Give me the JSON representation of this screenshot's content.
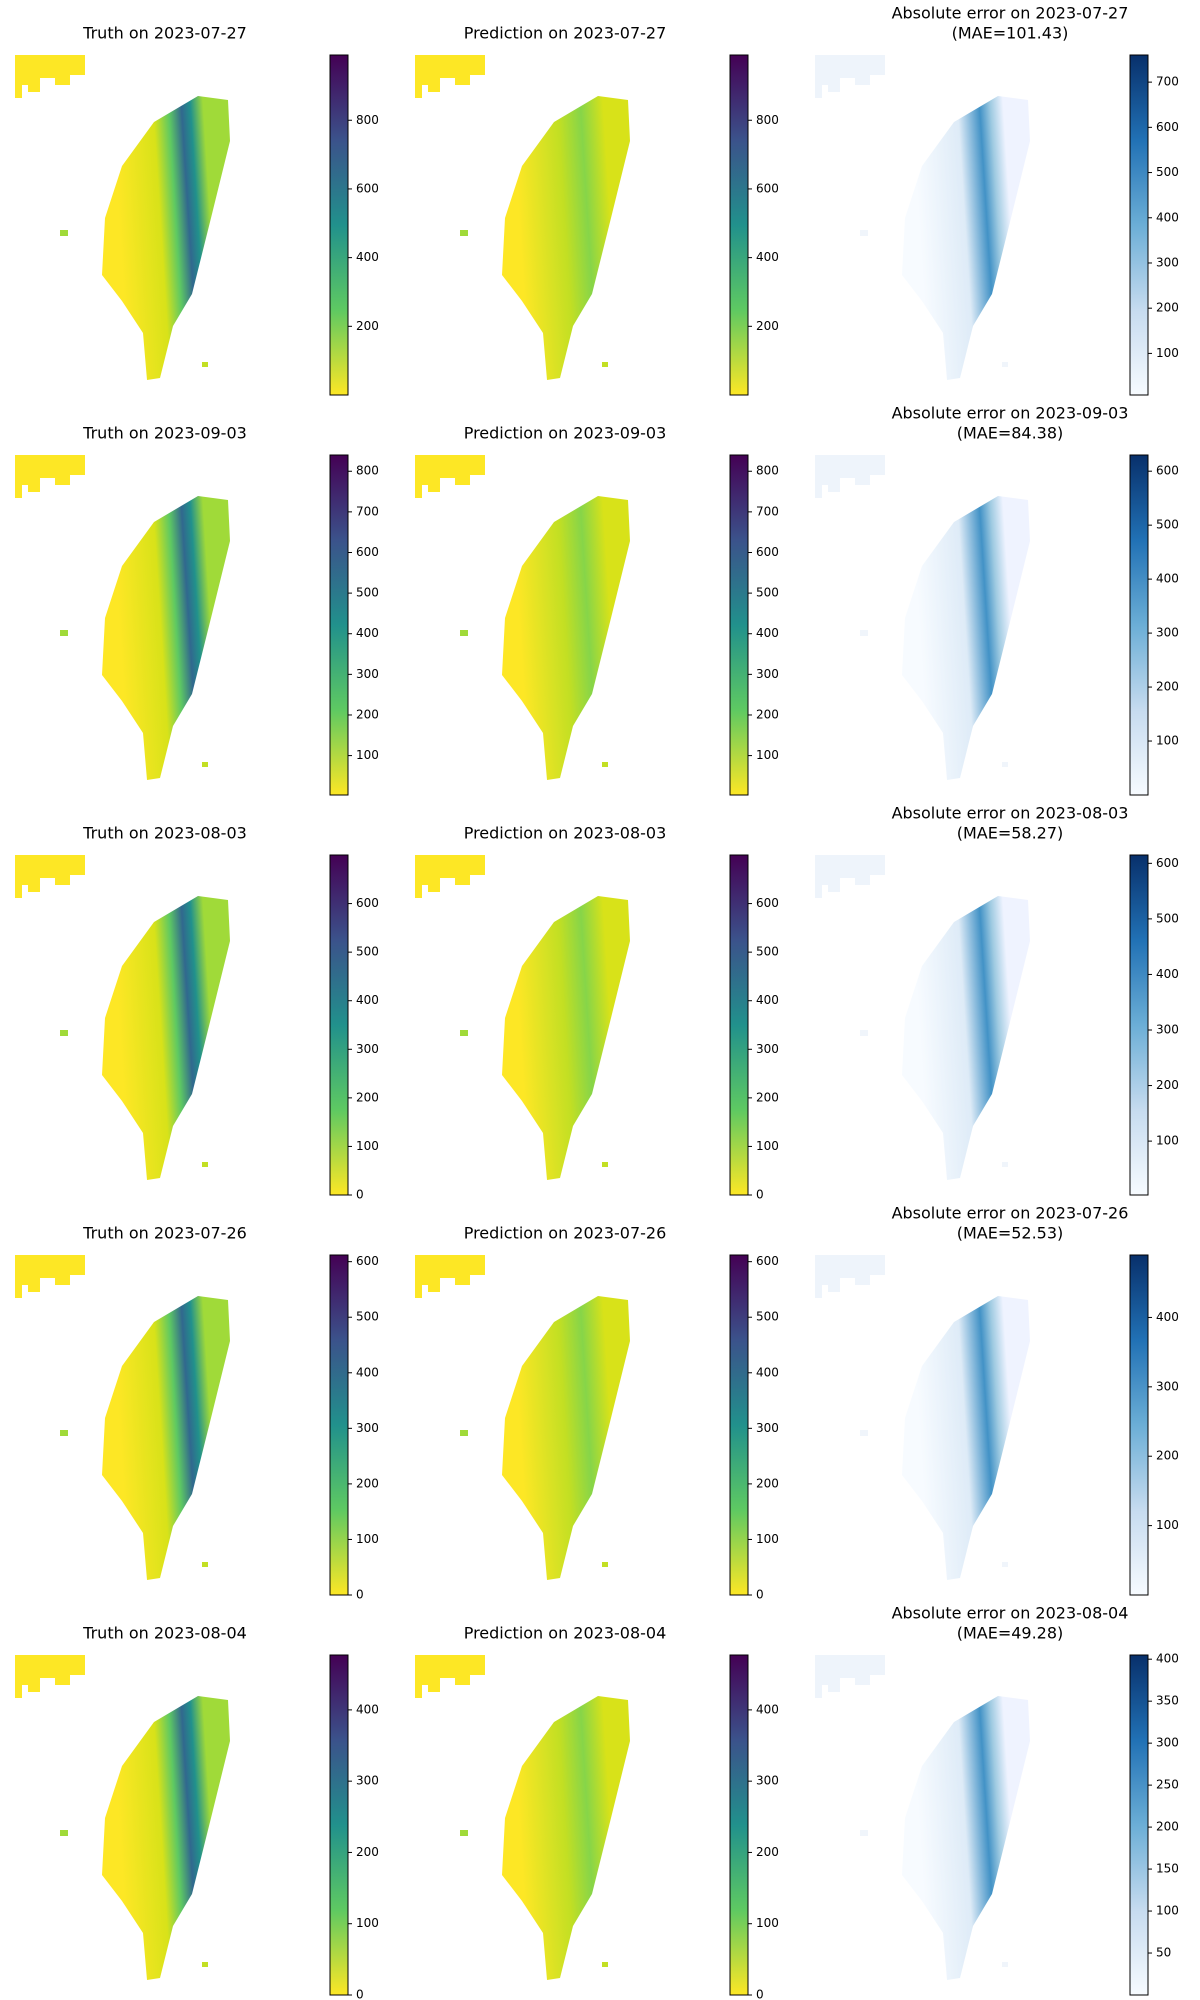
{
  "chart_data": [
    {
      "type": "heatmap",
      "title": "Truth on 2023-07-27",
      "colormap": "viridis_r",
      "clim": [
        0,
        990
      ],
      "cticks": [
        200,
        400,
        600,
        800
      ]
    },
    {
      "type": "heatmap",
      "title": "Prediction on 2023-07-27",
      "colormap": "viridis_r",
      "clim": [
        0,
        990
      ],
      "cticks": [
        200,
        400,
        600,
        800
      ]
    },
    {
      "type": "heatmap",
      "title": "Absolute error on 2023-07-27",
      "subtitle": "(MAE=101.43)",
      "colormap": "Blues",
      "clim": [
        8,
        760
      ],
      "cticks": [
        100,
        200,
        300,
        400,
        500,
        600,
        700
      ]
    },
    {
      "type": "heatmap",
      "title": "Truth on 2023-09-03",
      "colormap": "viridis_r",
      "clim": [
        3,
        840
      ],
      "cticks": [
        100,
        200,
        300,
        400,
        500,
        600,
        700,
        800
      ]
    },
    {
      "type": "heatmap",
      "title": "Prediction on 2023-09-03",
      "colormap": "viridis_r",
      "clim": [
        3,
        840
      ],
      "cticks": [
        100,
        200,
        300,
        400,
        500,
        600,
        700,
        800
      ]
    },
    {
      "type": "heatmap",
      "title": "Absolute error on 2023-09-03",
      "subtitle": "(MAE=84.38)",
      "colormap": "Blues",
      "clim": [
        0,
        630
      ],
      "cticks": [
        100,
        200,
        300,
        400,
        500,
        600
      ]
    },
    {
      "type": "heatmap",
      "title": "Truth on 2023-08-03",
      "colormap": "viridis_r",
      "clim": [
        0,
        700
      ],
      "cticks": [
        0,
        100,
        200,
        300,
        400,
        500,
        600
      ]
    },
    {
      "type": "heatmap",
      "title": "Prediction on 2023-08-03",
      "colormap": "viridis_r",
      "clim": [
        0,
        700
      ],
      "cticks": [
        0,
        100,
        200,
        300,
        400,
        500,
        600
      ]
    },
    {
      "type": "heatmap",
      "title": "Absolute error on 2023-08-03",
      "subtitle": "(MAE=58.27)",
      "colormap": "Blues",
      "clim": [
        3,
        615
      ],
      "cticks": [
        100,
        200,
        300,
        400,
        500,
        600
      ]
    },
    {
      "type": "heatmap",
      "title": "Truth on 2023-07-26",
      "colormap": "viridis_r",
      "clim": [
        0,
        612
      ],
      "cticks": [
        0,
        100,
        200,
        300,
        400,
        500,
        600
      ]
    },
    {
      "type": "heatmap",
      "title": "Prediction on 2023-07-26",
      "colormap": "viridis_r",
      "clim": [
        0,
        612
      ],
      "cticks": [
        0,
        100,
        200,
        300,
        400,
        500,
        600
      ]
    },
    {
      "type": "heatmap",
      "title": "Absolute error on 2023-07-26",
      "subtitle": "(MAE=52.53)",
      "colormap": "Blues",
      "clim": [
        0,
        490
      ],
      "cticks": [
        100,
        200,
        300,
        400
      ]
    },
    {
      "type": "heatmap",
      "title": "Truth on 2023-08-04",
      "colormap": "viridis_r",
      "clim": [
        0,
        477
      ],
      "cticks": [
        0,
        100,
        200,
        300,
        400
      ]
    },
    {
      "type": "heatmap",
      "title": "Prediction on 2023-08-04",
      "colormap": "viridis_r",
      "clim": [
        0,
        477
      ],
      "cticks": [
        0,
        100,
        200,
        300,
        400
      ]
    },
    {
      "type": "heatmap",
      "title": "Absolute error on 2023-08-04",
      "subtitle": "(MAE=49.28)",
      "colormap": "Blues",
      "clim": [
        0,
        405
      ],
      "cticks": [
        50,
        100,
        150,
        200,
        250,
        300,
        350,
        400
      ]
    }
  ]
}
